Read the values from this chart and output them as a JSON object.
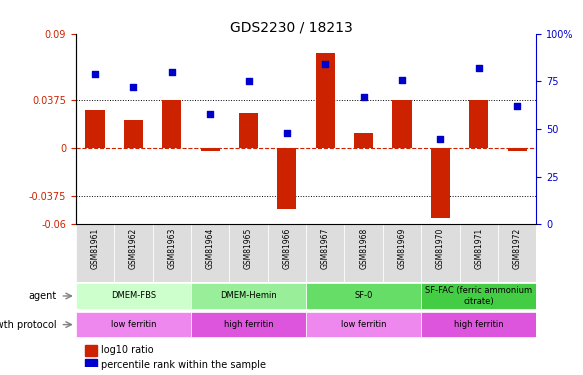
{
  "title": "GDS2230 / 18213",
  "samples": [
    "GSM81961",
    "GSM81962",
    "GSM81963",
    "GSM81964",
    "GSM81965",
    "GSM81966",
    "GSM81967",
    "GSM81968",
    "GSM81969",
    "GSM81970",
    "GSM81971",
    "GSM81972"
  ],
  "log10_ratio": [
    0.03,
    0.022,
    0.0375,
    -0.002,
    0.028,
    -0.048,
    0.075,
    0.012,
    0.0375,
    -0.055,
    0.0375,
    -0.002
  ],
  "percentile_rank": [
    79,
    72,
    80,
    58,
    75,
    48,
    84,
    67,
    76,
    45,
    82,
    62
  ],
  "ylim": [
    -0.06,
    0.09
  ],
  "yticks": [
    -0.06,
    -0.0375,
    0,
    0.0375,
    0.09
  ],
  "ytick_labels": [
    "-0.06",
    "-0.0375",
    "0",
    "0.0375",
    "0.09"
  ],
  "y2ticks": [
    0,
    25,
    50,
    75,
    100
  ],
  "y2tick_labels": [
    "0",
    "25",
    "50",
    "75",
    "100%"
  ],
  "hlines": [
    0.0375,
    -0.0375
  ],
  "bar_color": "#cc2200",
  "dot_color": "#0000cc",
  "zero_line_color": "#cc2200",
  "agent_groups": [
    {
      "label": "DMEM-FBS",
      "start": 0,
      "end": 3,
      "color": "#ccffcc"
    },
    {
      "label": "DMEM-Hemin",
      "start": 3,
      "end": 6,
      "color": "#99ee99"
    },
    {
      "label": "SF-0",
      "start": 6,
      "end": 9,
      "color": "#66dd66"
    },
    {
      "label": "SF-FAC (ferric ammonium\ncitrate)",
      "start": 9,
      "end": 12,
      "color": "#44cc44"
    }
  ],
  "protocol_groups": [
    {
      "label": "low ferritin",
      "start": 0,
      "end": 3,
      "color": "#ee88ee"
    },
    {
      "label": "high ferritin",
      "start": 3,
      "end": 6,
      "color": "#dd55dd"
    },
    {
      "label": "low ferritin",
      "start": 6,
      "end": 9,
      "color": "#ee88ee"
    },
    {
      "label": "high ferritin",
      "start": 9,
      "end": 12,
      "color": "#dd55dd"
    }
  ],
  "agent_label": "agent",
  "protocol_label": "growth protocol",
  "legend_items": [
    {
      "color": "#cc2200",
      "label": "log10 ratio"
    },
    {
      "color": "#0000cc",
      "label": "percentile rank within the sample"
    }
  ]
}
